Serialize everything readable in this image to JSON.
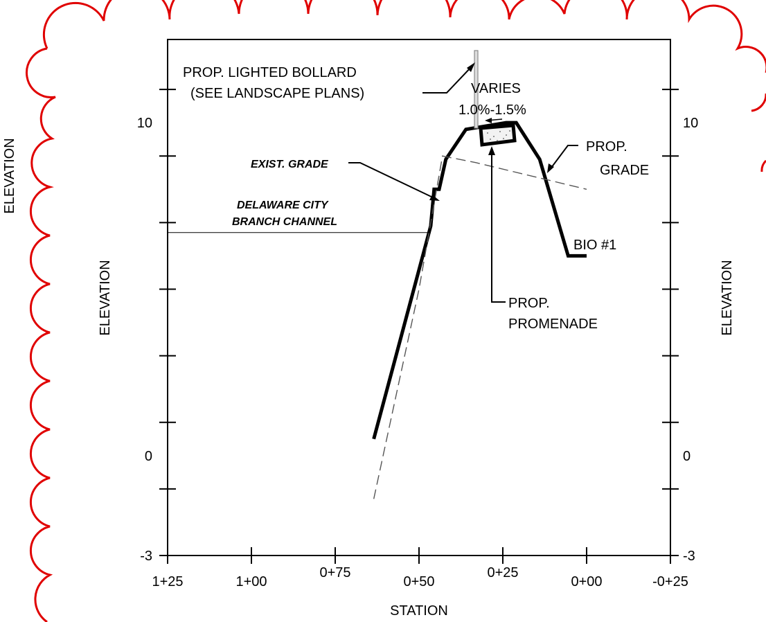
{
  "chart_data": {
    "type": "line",
    "xlabel": "STATION",
    "ylabel": "ELEVATION",
    "x_ticks": [
      "1+25",
      "1+00",
      "0+75",
      "0+50",
      "0+25",
      "0+00",
      "-0+25"
    ],
    "x_tick_values": [
      125,
      100,
      75,
      50,
      25,
      0,
      -25
    ],
    "y_tick_labels": [
      "10",
      "0",
      "-3"
    ],
    "y_tick_values": [
      10,
      0,
      -3
    ],
    "xlim": [
      125,
      -25
    ],
    "ylim": [
      -3,
      12.5
    ],
    "series": [
      {
        "style": "bold-solid",
        "points": [
          [
            63.5,
            0.5
          ],
          [
            46.5,
            6.9
          ],
          [
            45.5,
            8.0
          ],
          [
            44,
            8.0
          ],
          [
            42,
            8.9
          ],
          [
            36,
            9.8
          ],
          [
            24,
            10.0
          ],
          [
            21,
            10.0
          ],
          [
            14,
            8.9
          ],
          [
            5.5,
            6.0
          ],
          [
            0,
            6.0
          ]
        ]
      },
      {
        "style": "dashed",
        "points": [
          [
            63.5,
            -1.3
          ],
          [
            50,
            5.0
          ],
          [
            43,
            9.0
          ],
          [
            33,
            8.8
          ],
          [
            0,
            8.0
          ]
        ]
      },
      {
        "style": "thin-solid",
        "points": [
          [
            125,
            6.7
          ],
          [
            46.5,
            6.7
          ]
        ]
      }
    ]
  },
  "labels": {
    "bollard_line1": "PROP.  LIGHTED BOLLARD",
    "bollard_line2": "(SEE LANDSCAPE PLANS)",
    "varies": "VARIES",
    "slope": "1.0%-1.5%",
    "exist_grade": "EXIST. GRADE",
    "channel_line1": "DELAWARE CITY",
    "channel_line2": "BRANCH CHANNEL",
    "prop_grade_line1": "PROP.",
    "prop_grade_line2": "GRADE",
    "bio": "BIO #1",
    "promenade_line1": "PROP.",
    "promenade_line2": "PROMENADE",
    "right_y_labels": [
      "10",
      "0",
      "-3"
    ],
    "outer_ylabel": "ELEVATION",
    "right_ylabel": "ELEVATION"
  },
  "colors": {
    "revision_cloud": "#e00000",
    "linework": "#000000"
  }
}
